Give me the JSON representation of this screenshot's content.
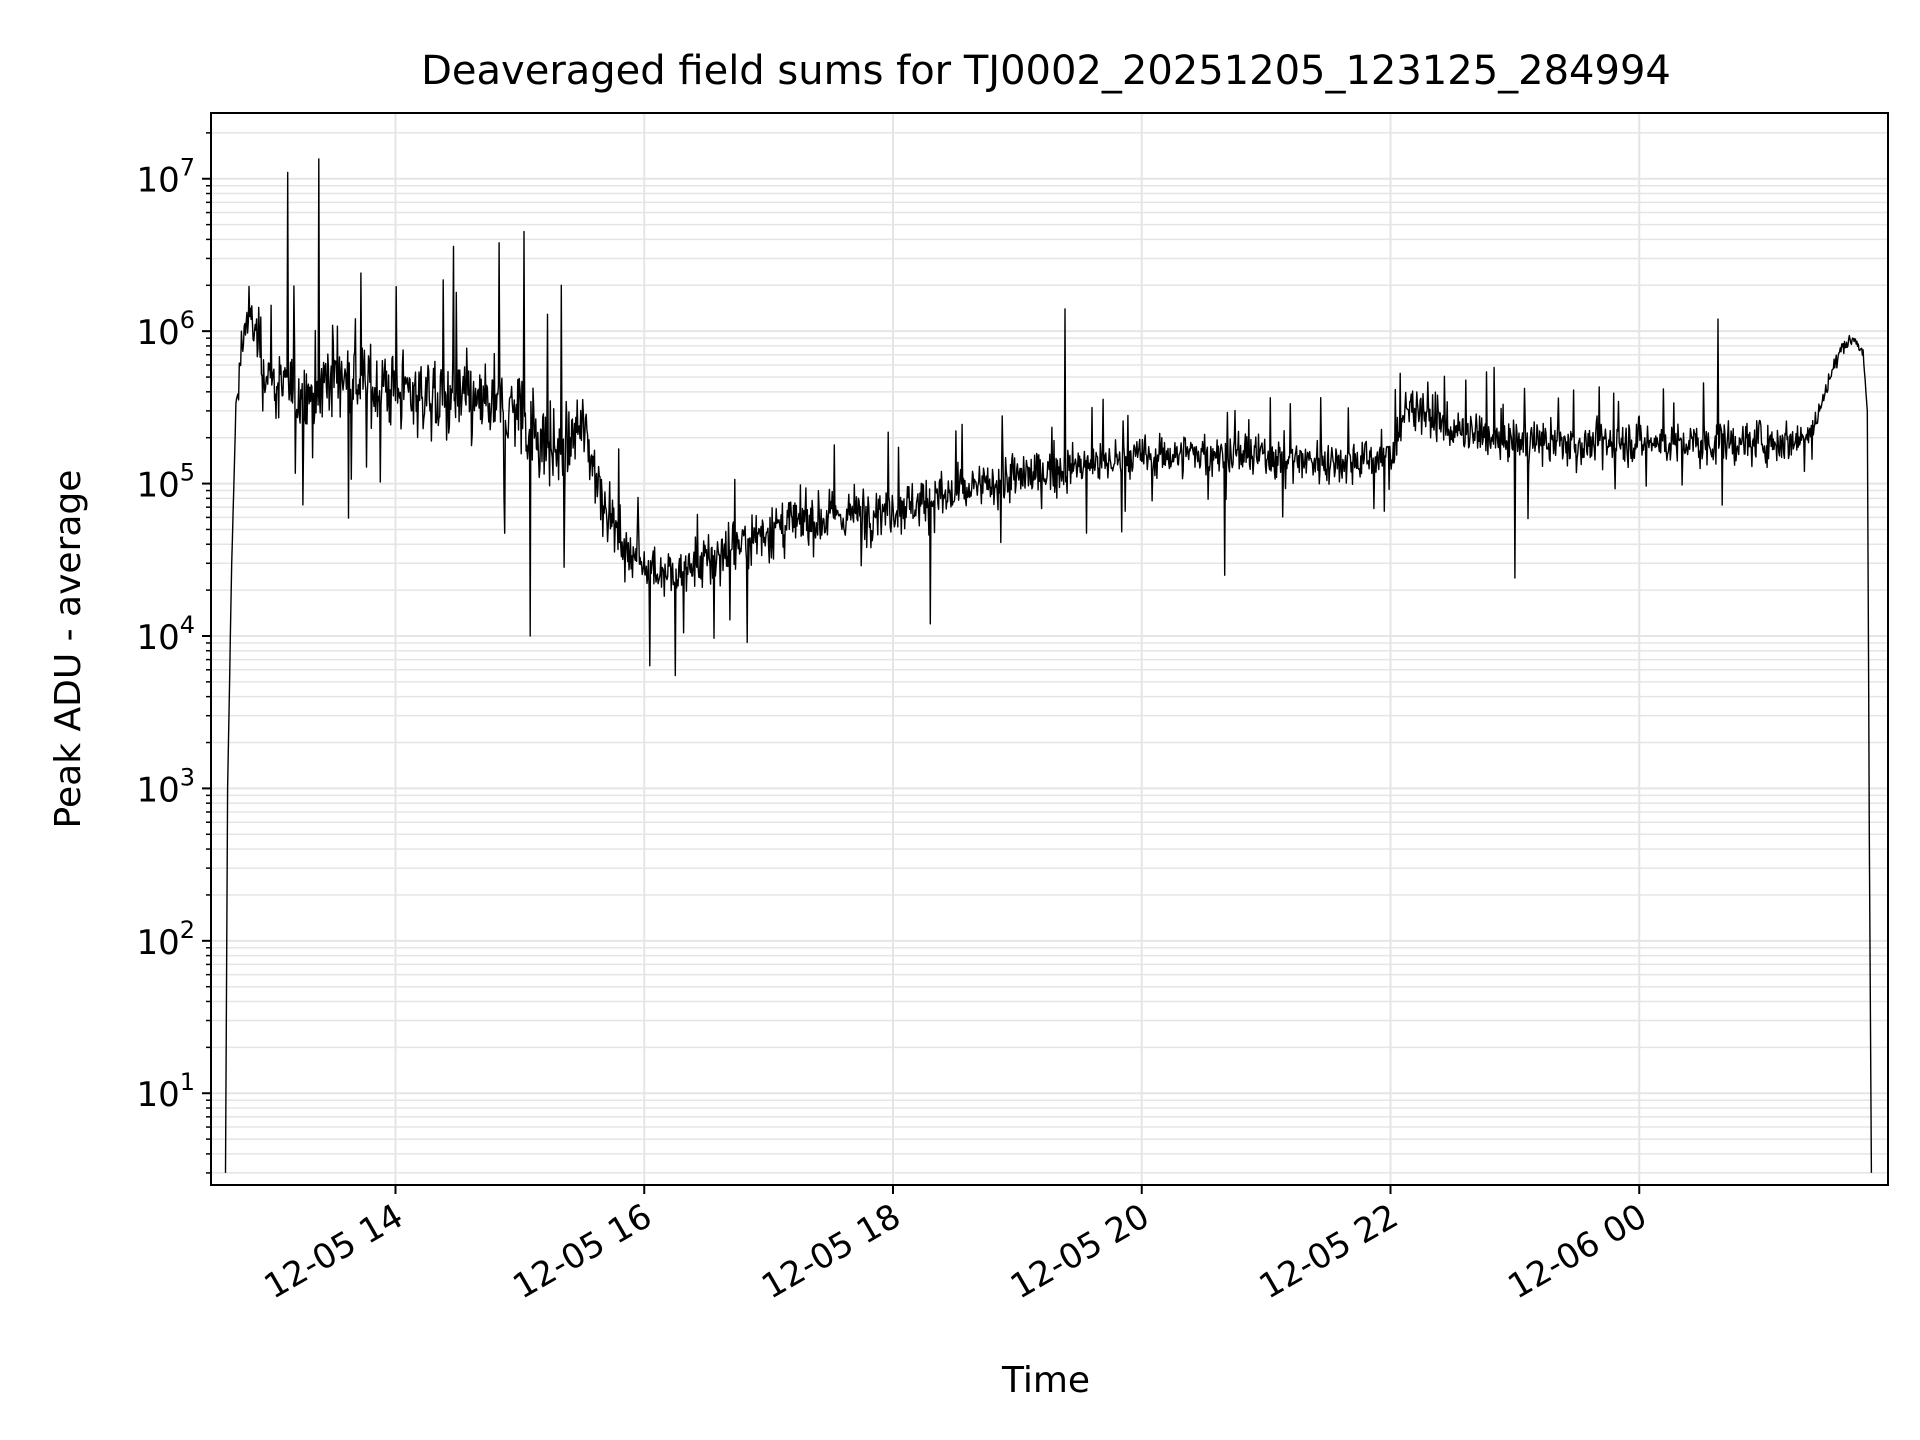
{
  "chart_data": {
    "type": "line",
    "title": "Deaveraged field sums for TJ0002_20251205_123125_284994",
    "xlabel": "Time",
    "ylabel": "Peak ADU - average",
    "xscale": "time",
    "yscale": "log",
    "xlim": [
      "2025-12-05 12:31",
      "2025-12-06 02:00"
    ],
    "ylim": [
      2.5,
      27000000
    ],
    "x_ticks": [
      {
        "value": "2025-12-05 14:00",
        "label": "12-05 14"
      },
      {
        "value": "2025-12-05 16:00",
        "label": "12-05 16"
      },
      {
        "value": "2025-12-05 18:00",
        "label": "12-05 18"
      },
      {
        "value": "2025-12-05 20:00",
        "label": "12-05 20"
      },
      {
        "value": "2025-12-05 22:00",
        "label": "12-05 22"
      },
      {
        "value": "2025-12-06 00:00",
        "label": "12-06 00"
      }
    ],
    "y_ticks": [
      {
        "value": 10,
        "base": "10",
        "exp": "1"
      },
      {
        "value": 100,
        "base": "10",
        "exp": "2"
      },
      {
        "value": 1000,
        "base": "10",
        "exp": "3"
      },
      {
        "value": 10000,
        "base": "10",
        "exp": "4"
      },
      {
        "value": 100000,
        "base": "10",
        "exp": "5"
      },
      {
        "value": 1000000,
        "base": "10",
        "exp": "6"
      },
      {
        "value": 10000000,
        "base": "10",
        "exp": "7"
      }
    ],
    "grid": true,
    "minor_grid_y": true,
    "line_color": "#000000",
    "grid_color": "#e5e5e5",
    "series": [
      {
        "color": "#000000",
        "x": [
          "2025-12-05 12:38",
          "2025-12-05 12:39",
          "2025-12-05 12:41",
          "2025-12-05 12:43",
          "2025-12-05 12:46",
          "2025-12-05 12:50",
          "2025-12-05 12:55",
          "2025-12-05 13:00",
          "2025-12-05 13:10",
          "2025-12-05 13:20",
          "2025-12-05 13:30",
          "2025-12-05 13:45",
          "2025-12-05 14:00",
          "2025-12-05 14:15",
          "2025-12-05 14:30",
          "2025-12-05 14:45",
          "2025-12-05 15:00",
          "2025-12-05 15:10",
          "2025-12-05 15:20",
          "2025-12-05 15:30",
          "2025-12-05 15:40",
          "2025-12-05 15:50",
          "2025-12-05 16:00",
          "2025-12-05 16:15",
          "2025-12-05 16:30",
          "2025-12-05 16:45",
          "2025-12-05 17:00",
          "2025-12-05 17:15",
          "2025-12-05 17:30",
          "2025-12-05 18:00",
          "2025-12-05 18:30",
          "2025-12-05 19:00",
          "2025-12-05 19:30",
          "2025-12-05 20:00",
          "2025-12-05 20:30",
          "2025-12-05 21:00",
          "2025-12-05 21:30",
          "2025-12-05 22:00",
          "2025-12-05 22:10",
          "2025-12-05 22:30",
          "2025-12-05 23:00",
          "2025-12-05 23:30",
          "2025-12-06 00:00",
          "2025-12-06 00:30",
          "2025-12-06 01:00",
          "2025-12-06 01:15",
          "2025-12-06 01:25",
          "2025-12-06 01:32",
          "2025-12-06 01:38",
          "2025-12-06 01:44",
          "2025-12-06 01:48",
          "2025-12-06 01:50",
          "2025-12-06 01:51",
          "2025-12-06 01:52"
        ],
        "y": [
          3,
          1000,
          30000,
          300000,
          900000,
          1300000,
          700000,
          450000,
          400000,
          380000,
          550000,
          450000,
          420000,
          380000,
          350000,
          320000,
          300000,
          200000,
          150000,
          250000,
          80000,
          40000,
          30000,
          25000,
          30000,
          40000,
          50000,
          55000,
          60000,
          70000,
          85000,
          110000,
          130000,
          150000,
          160000,
          150000,
          140000,
          150000,
          350000,
          220000,
          190000,
          180000,
          190000,
          180000,
          190000,
          190000,
          250000,
          500000,
          800000,
          900000,
          700000,
          300000,
          500,
          3
        ],
        "noise_dex": [
          0,
          0,
          0,
          0.1,
          0.2,
          0.3,
          0.35,
          0.4,
          0.42,
          0.45,
          0.45,
          0.4,
          0.42,
          0.42,
          0.42,
          0.42,
          0.45,
          0.45,
          0.42,
          0.4,
          0.3,
          0.25,
          0.3,
          0.3,
          0.3,
          0.3,
          0.3,
          0.28,
          0.28,
          0.28,
          0.25,
          0.25,
          0.22,
          0.22,
          0.22,
          0.22,
          0.22,
          0.22,
          0.25,
          0.22,
          0.22,
          0.22,
          0.22,
          0.22,
          0.22,
          0.2,
          0.15,
          0.1,
          0.06,
          0.05,
          0.05,
          0,
          0,
          0
        ]
      }
    ],
    "spikes": [
      {
        "x": "2025-12-05 13:08",
        "y": 11000000
      },
      {
        "x": "2025-12-05 13:23",
        "y": 13500000
      },
      {
        "x": "2025-12-05 14:28",
        "y": 3600000
      },
      {
        "x": "2025-12-05 14:50",
        "y": 3800000
      },
      {
        "x": "2025-12-05 15:02",
        "y": 4500000
      },
      {
        "x": "2025-12-05 15:20",
        "y": 2000000
      },
      {
        "x": "2025-12-05 15:05",
        "y": 10000
      },
      {
        "x": "2025-12-05 16:15",
        "y": 5500
      },
      {
        "x": "2025-12-05 18:18",
        "y": 12000
      },
      {
        "x": "2025-12-05 19:23",
        "y": 1400000
      },
      {
        "x": "2025-12-05 20:40",
        "y": 25000
      },
      {
        "x": "2025-12-05 23:00",
        "y": 24000
      },
      {
        "x": "2025-12-06 00:38",
        "y": 1200000
      }
    ]
  }
}
